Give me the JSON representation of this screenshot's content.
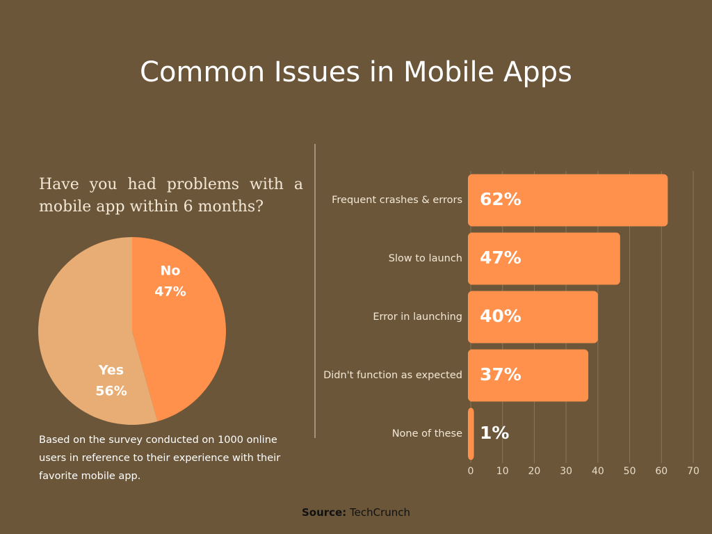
{
  "title": "Common Issues in Mobile Apps",
  "chart_data": [
    {
      "type": "pie",
      "title": "Have you had problems with a mobile app within 6 months?",
      "categories": [
        "No",
        "Yes"
      ],
      "values": [
        47,
        56
      ],
      "value_labels": [
        "47%",
        "56%"
      ],
      "colors": [
        "#ff914d",
        "#e8ad74"
      ]
    },
    {
      "type": "bar",
      "orientation": "horizontal",
      "categories": [
        "Frequent crashes & errors",
        "Slow to launch",
        "Error in launching",
        "Didn't function as expected",
        "None of these"
      ],
      "values": [
        62,
        47,
        40,
        37,
        1
      ],
      "value_labels": [
        "62%",
        "47%",
        "40%",
        "37%",
        "1%"
      ],
      "color": "#ff914d",
      "xlim": [
        0,
        70
      ],
      "xticks": [
        0,
        10,
        20,
        30,
        40,
        50,
        60,
        70
      ],
      "grid": true
    }
  ],
  "note": "Based on the survey conducted on 1000 online users in reference to their experience with their favorite mobile app.",
  "source": {
    "label": "Source:",
    "text": "TechCrunch"
  }
}
